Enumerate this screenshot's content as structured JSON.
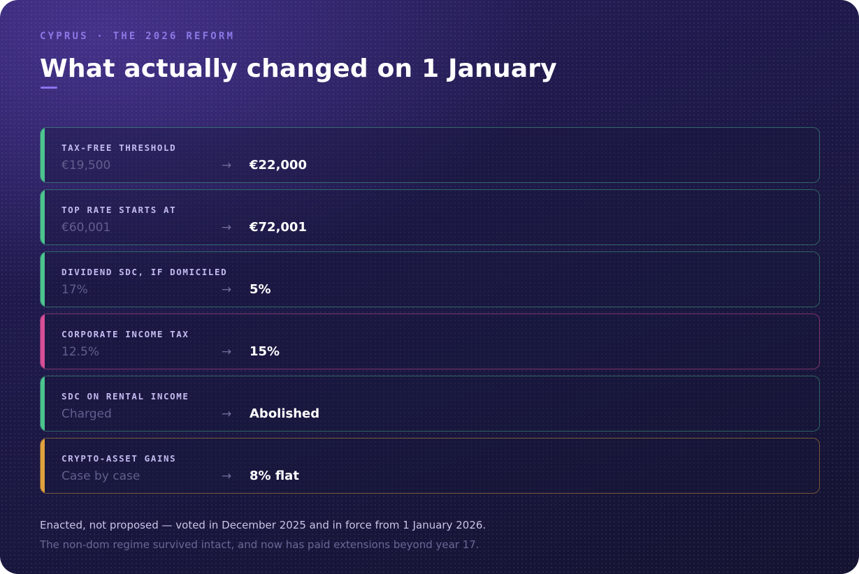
{
  "header": {
    "eyebrow": "CYPRUS · THE 2026 REFORM",
    "title": "What actually changed on 1 January"
  },
  "rows": [
    {
      "label": "TAX-FREE THRESHOLD",
      "old": "€19,500",
      "arrow": "→",
      "new": "€22,000",
      "accent": "green"
    },
    {
      "label": "TOP RATE STARTS AT",
      "old": "€60,001",
      "arrow": "→",
      "new": "€72,001",
      "accent": "green"
    },
    {
      "label": "DIVIDEND SDC, IF DOMICILED",
      "old": "17%",
      "arrow": "→",
      "new": "5%",
      "accent": "green"
    },
    {
      "label": "CORPORATE INCOME TAX",
      "old": "12.5%",
      "arrow": "→",
      "new": "15%",
      "accent": "pink"
    },
    {
      "label": "SDC ON RENTAL INCOME",
      "old": "Charged",
      "arrow": "→",
      "new": "Abolished",
      "accent": "green"
    },
    {
      "label": "CRYPTO-ASSET GAINS",
      "old": "Case by case",
      "arrow": "→",
      "new": "8% flat",
      "accent": "amber"
    }
  ],
  "colors": {
    "green": "#4cc48e",
    "pink": "#d64f96",
    "amber": "#e0a23c",
    "eyebrow": "#8c79e6"
  },
  "footer": {
    "line1": "Enacted, not proposed — voted in December 2025 and in force from 1 January 2026.",
    "line2": "The non-dom regime survived intact, and now has paid extensions beyond year 17."
  }
}
